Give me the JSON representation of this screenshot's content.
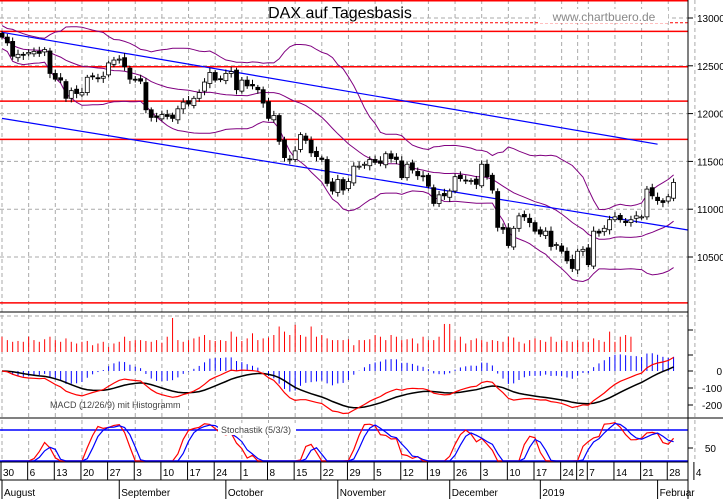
{
  "header": {
    "title": "DAX auf Tagesbasis",
    "watermark": "www.chartbuero.de"
  },
  "indicators": {
    "macd_label": "MACD (12/26/9) mit Histogramm",
    "stoch_label": "Stochastik (5/3/3)"
  },
  "colors": {
    "candle_up": "#ffffff",
    "candle_down": "#000000",
    "resistance": "#ff0000",
    "trend": "#0000ff",
    "bollinger": "#800080",
    "macd": "#ff0000",
    "signal": "#000000",
    "histogram": "#0000ff",
    "volume": "#ff0000",
    "stoch_k": "#ff0000",
    "stoch_d": "#0000ff"
  },
  "chart_data": {
    "type": "candlestick",
    "title": "DAX auf Tagesbasis",
    "price_axis": {
      "ticks": [
        "13000",
        "12500",
        "12000",
        "11500",
        "11000",
        "10500"
      ],
      "values": [
        13000,
        12500,
        12000,
        11500,
        11000,
        10500
      ]
    },
    "macd_axis": {
      "ticks": [
        "0",
        "-100",
        "-200"
      ],
      "values": [
        0,
        -100,
        -200
      ]
    },
    "stoch_axis": {
      "ticks": [
        "50"
      ],
      "values": [
        50
      ],
      "levels": [
        80,
        20
      ]
    },
    "x_day_labels": [
      {
        "label": "30",
        "day": 0
      },
      {
        "label": "6",
        "day": 5
      },
      {
        "label": "13",
        "day": 10
      },
      {
        "label": "20",
        "day": 15
      },
      {
        "label": "27",
        "day": 20
      },
      {
        "label": "3",
        "day": 25
      },
      {
        "label": "10",
        "day": 30
      },
      {
        "label": "17",
        "day": 35
      },
      {
        "label": "24",
        "day": 40
      },
      {
        "label": "1",
        "day": 45
      },
      {
        "label": "8",
        "day": 50
      },
      {
        "label": "15",
        "day": 55
      },
      {
        "label": "22",
        "day": 60
      },
      {
        "label": "29",
        "day": 65
      },
      {
        "label": "5",
        "day": 70
      },
      {
        "label": "12",
        "day": 75
      },
      {
        "label": "19",
        "day": 80
      },
      {
        "label": "26",
        "day": 85
      },
      {
        "label": "3",
        "day": 90
      },
      {
        "label": "10",
        "day": 95
      },
      {
        "label": "17",
        "day": 100
      },
      {
        "label": "24",
        "day": 105
      },
      {
        "label": "2",
        "day": 108
      },
      {
        "label": "7",
        "day": 110
      },
      {
        "label": "14",
        "day": 115
      },
      {
        "label": "21",
        "day": 120
      },
      {
        "label": "28",
        "day": 125
      },
      {
        "label": "4",
        "day": 130
      }
    ],
    "x_month_labels": [
      {
        "label": "August",
        "day": 0
      },
      {
        "label": "September",
        "day": 22
      },
      {
        "label": "October",
        "day": 42
      },
      {
        "label": "November",
        "day": 63
      },
      {
        "label": "December",
        "day": 84
      },
      {
        "label": "2019",
        "day": 101
      },
      {
        "label": "Februar",
        "day": 123
      }
    ],
    "closes": [
      12800,
      12740,
      12600,
      12620,
      12610,
      12640,
      12650,
      12630,
      12670,
      12420,
      12360,
      12350,
      12160,
      12240,
      12210,
      12220,
      12380,
      12390,
      12370,
      12390,
      12530,
      12560,
      12570,
      12490,
      12360,
      12350,
      12340,
      12040,
      11960,
      11960,
      11990,
      11970,
      11950,
      12050,
      12120,
      12100,
      12160,
      12220,
      12330,
      12430,
      12350,
      12360,
      12420,
      12440,
      12250,
      12350,
      12290,
      12290,
      12250,
      12110,
      11950,
      11980,
      11710,
      11540,
      11520,
      11610,
      11780,
      11720,
      11590,
      11550,
      11520,
      11270,
      11190,
      11310,
      11200,
      11290,
      11450,
      11450,
      11470,
      11520,
      11490,
      11480,
      11580,
      11530,
      11520,
      11330,
      11470,
      11410,
      11350,
      11340,
      11240,
      11060,
      11150,
      11140,
      11190,
      11340,
      11320,
      11300,
      11300,
      11260,
      11470,
      11340,
      11200,
      10810,
      10790,
      10620,
      10800,
      10930,
      10920,
      10860,
      10770,
      10740,
      10770,
      10610,
      10630,
      10560,
      10460,
      10380,
      10560,
      10580,
      10420,
      10770,
      10750,
      10800,
      10890,
      10920,
      10890,
      10860,
      10890,
      10930,
      10920,
      11210,
      11140,
      11090,
      11070,
      11130,
      11280
    ],
    "volumes": [
      18,
      14,
      12,
      13,
      12,
      18,
      14,
      12,
      15,
      18,
      14,
      12,
      16,
      12,
      10,
      12,
      13,
      8,
      10,
      12,
      6,
      10,
      12,
      18,
      13,
      14,
      14,
      13,
      12,
      14,
      11,
      18,
      40,
      14,
      12,
      14,
      16,
      18,
      20,
      14,
      13,
      14,
      13,
      24,
      18,
      13,
      16,
      22,
      14,
      16,
      17,
      20,
      30,
      24,
      20,
      32,
      20,
      18,
      30,
      18,
      20,
      16,
      14,
      14,
      14,
      15,
      8,
      14,
      14,
      15,
      20,
      18,
      14,
      20,
      18,
      14,
      15,
      16,
      10,
      18,
      14,
      14,
      18,
      33,
      33,
      14,
      18,
      10,
      14,
      16,
      14,
      12,
      14,
      13,
      12,
      18,
      17,
      12,
      10,
      14,
      16,
      14,
      12,
      18,
      12,
      14,
      13,
      12,
      14,
      12,
      12,
      16,
      14,
      12,
      24,
      12,
      18,
      20,
      18
    ],
    "resistance_levels": [
      13180,
      12950,
      12860,
      12490,
      12130,
      11730,
      10020
    ],
    "trend_lines": [
      {
        "name": "upper",
        "from": {
          "day": 0,
          "price": 12850
        },
        "to": {
          "day": 123,
          "price": 11680
        }
      },
      {
        "name": "lower",
        "from": {
          "day": 0,
          "price": 11950
        },
        "to": {
          "day": 129,
          "price": 10780
        }
      }
    ]
  }
}
